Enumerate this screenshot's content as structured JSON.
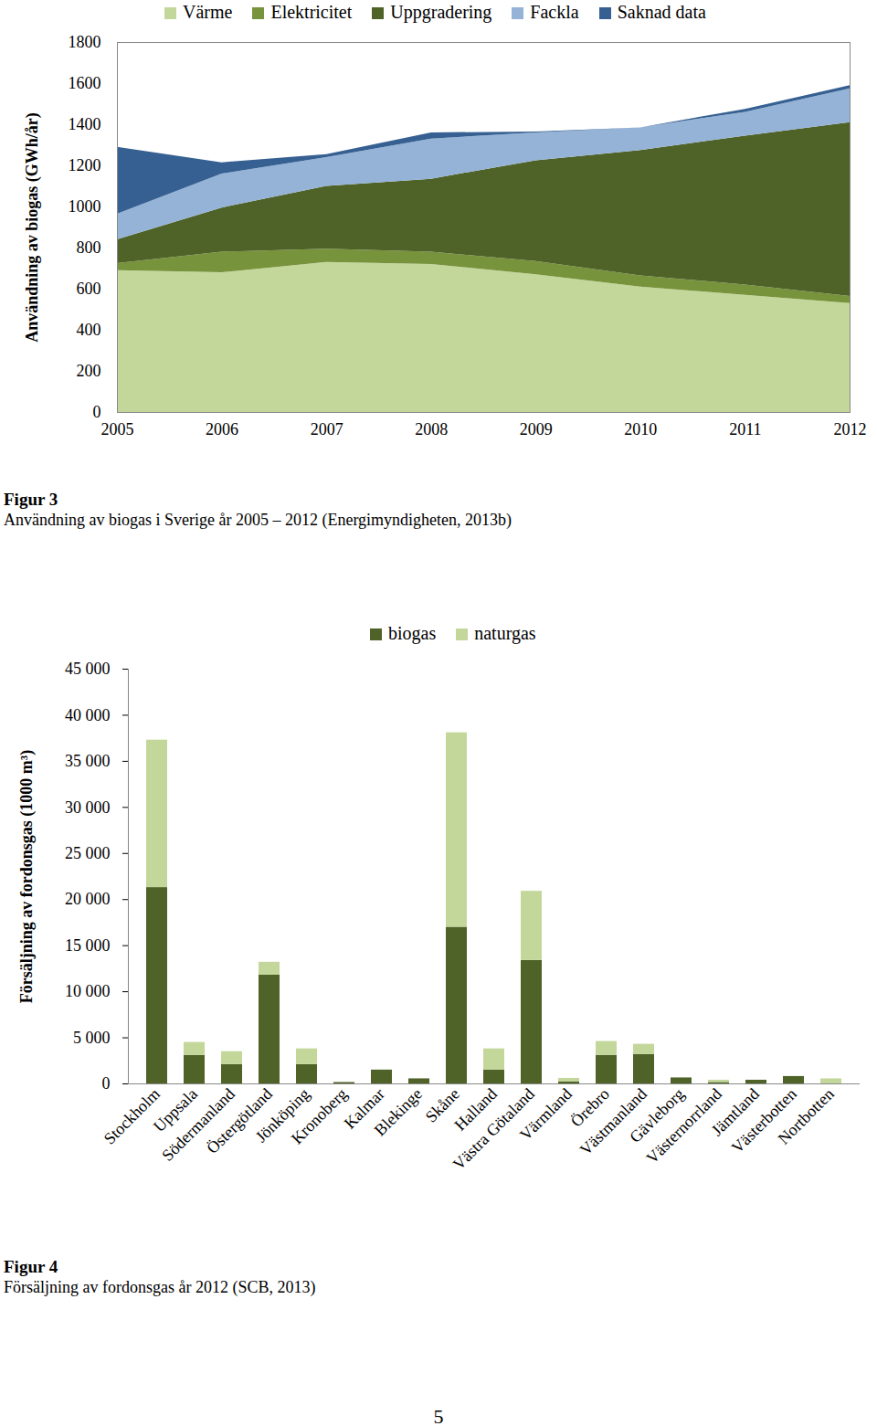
{
  "chart_data": [
    {
      "type": "area",
      "stacked": true,
      "title": "Figur 3",
      "subtitle": "Användning av biogas i Sverige år 2005 – 2012 (Energimyndigheten, 2013b)",
      "ylabel": "Användning av biogas (GWh/år)",
      "x": [
        2005,
        2006,
        2007,
        2008,
        2009,
        2010,
        2011,
        2012
      ],
      "xlim": [
        2005,
        2012
      ],
      "xticks": [
        2005,
        2006,
        2007,
        2008,
        2009,
        2010,
        2011,
        2012
      ],
      "ylim": [
        0,
        1800
      ],
      "yticks": [
        0,
        200,
        400,
        600,
        800,
        1000,
        1200,
        1400,
        1600,
        1800
      ],
      "grid": false,
      "legend": "top",
      "series": [
        {
          "name": "Värme",
          "color": "#c4d79b",
          "values": [
            690,
            680,
            730,
            720,
            670,
            610,
            570,
            530
          ]
        },
        {
          "name": "Elektricitet",
          "color": "#77933c",
          "values": [
            35,
            100,
            65,
            60,
            65,
            55,
            50,
            35
          ]
        },
        {
          "name": "Uppgradering",
          "color": "#4f6228",
          "values": [
            115,
            215,
            305,
            355,
            490,
            610,
            725,
            845
          ]
        },
        {
          "name": "Fackla",
          "color": "#95b3d7",
          "values": [
            125,
            165,
            140,
            195,
            135,
            110,
            115,
            165
          ]
        },
        {
          "name": "Saknad data",
          "color": "#366092",
          "values": [
            325,
            55,
            15,
            30,
            5,
            0,
            15,
            15
          ]
        }
      ]
    },
    {
      "type": "bar",
      "stacked": true,
      "title": "Figur 4",
      "subtitle": "Försäljning av fordonsgas år 2012 (SCB, 2013)",
      "ylabel": "Försäljning av fordonsgas (1000 m³)",
      "categories": [
        "Stockholm",
        "Uppsala",
        "Södermanland",
        "Östergötland",
        "Jönköping",
        "Kronoberg",
        "Kalmar",
        "Blekinge",
        "Skåne",
        "Halland",
        "Västra Götaland",
        "Värmland",
        "Örebro",
        "Västmanland",
        "Gävleborg",
        "Västernorrland",
        "Jämtland",
        "Västerbotten",
        "Nortbotten"
      ],
      "ylim": [
        0,
        45000
      ],
      "yticks": [
        0,
        {
          "value": 5000,
          "label": "5 000"
        },
        {
          "value": 10000,
          "label": "10 000"
        },
        {
          "value": 15000,
          "label": "15 000"
        },
        {
          "value": 20000,
          "label": "20 000"
        },
        {
          "value": 25000,
          "label": "25 000"
        },
        {
          "value": 30000,
          "label": "30 000"
        },
        {
          "value": 35000,
          "label": "35 000"
        },
        {
          "value": 40000,
          "label": "40 000"
        },
        {
          "value": 45000,
          "label": "45 000"
        }
      ],
      "grid": false,
      "legend": "top",
      "series": [
        {
          "name": "biogas",
          "color": "#4f6228",
          "values": [
            21300,
            3100,
            2100,
            11800,
            2100,
            150,
            1500,
            550,
            17000,
            1500,
            13400,
            200,
            3100,
            3200,
            650,
            150,
            400,
            800,
            0
          ]
        },
        {
          "name": "naturgas",
          "color": "#c4d79b",
          "values": [
            16000,
            1400,
            1400,
            1400,
            1700,
            0,
            0,
            0,
            21100,
            2300,
            7500,
            400,
            1500,
            1100,
            0,
            250,
            0,
            0,
            550
          ]
        }
      ]
    }
  ],
  "page_number": 5
}
